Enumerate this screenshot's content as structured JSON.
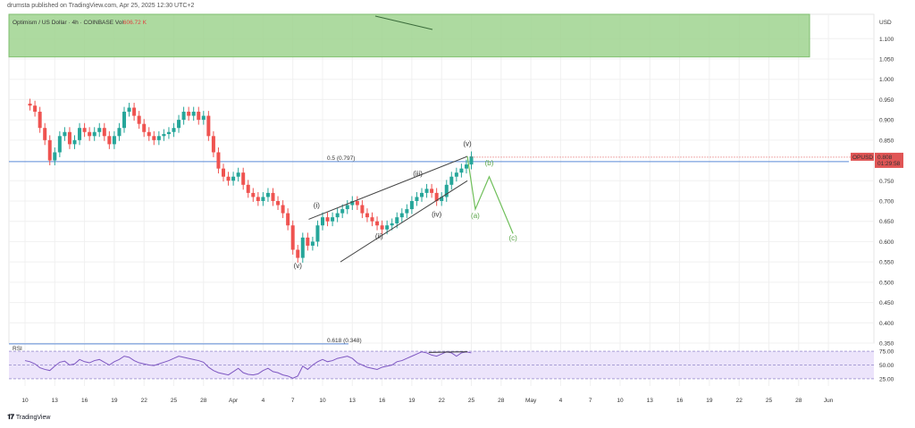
{
  "header": {
    "published": "drumsta published on TradingView.com, Apr 25, 2025 12:30 UTC+2"
  },
  "watermark": {
    "text": "TradingView"
  },
  "chart_data": {
    "type": "candlestick",
    "symbol_title": "Optimism / US Dollar · 4h · COINBASE",
    "volume_label": "Vol",
    "volume_value": "606.72 K",
    "currency": "USD",
    "ylim": [
      0.35,
      1.16
    ],
    "y_ticks": [
      "1.100",
      "1.050",
      "1.000",
      "0.950",
      "0.900",
      "0.850",
      "0.750",
      "0.700",
      "0.650",
      "0.600",
      "0.550",
      "0.500",
      "0.450",
      "0.400",
      "0.350"
    ],
    "x_ticks": [
      "10",
      "13",
      "16",
      "19",
      "22",
      "25",
      "28",
      "Apr",
      "4",
      "7",
      "10",
      "13",
      "16",
      "19",
      "22",
      "25",
      "28",
      "May",
      "4",
      "7",
      "10",
      "13",
      "16",
      "19",
      "22",
      "25",
      "28",
      "Jun"
    ],
    "price_path": [
      [
        0,
        0.94
      ],
      [
        1,
        0.935
      ],
      [
        2,
        0.92
      ],
      [
        3,
        0.88
      ],
      [
        4,
        0.85
      ],
      [
        5,
        0.8
      ],
      [
        6,
        0.82
      ],
      [
        7,
        0.86
      ],
      [
        8,
        0.87
      ],
      [
        9,
        0.84
      ],
      [
        10,
        0.85
      ],
      [
        11,
        0.88
      ],
      [
        12,
        0.87
      ],
      [
        13,
        0.86
      ],
      [
        14,
        0.87
      ],
      [
        15,
        0.88
      ],
      [
        16,
        0.86
      ],
      [
        17,
        0.84
      ],
      [
        18,
        0.86
      ],
      [
        19,
        0.88
      ],
      [
        20,
        0.92
      ],
      [
        21,
        0.93
      ],
      [
        22,
        0.91
      ],
      [
        23,
        0.89
      ],
      [
        24,
        0.87
      ],
      [
        25,
        0.86
      ],
      [
        26,
        0.85
      ],
      [
        27,
        0.86
      ],
      [
        28,
        0.865
      ],
      [
        29,
        0.87
      ],
      [
        30,
        0.88
      ],
      [
        31,
        0.9
      ],
      [
        32,
        0.92
      ],
      [
        33,
        0.91
      ],
      [
        34,
        0.92
      ],
      [
        35,
        0.9
      ],
      [
        36,
        0.91
      ],
      [
        37,
        0.86
      ],
      [
        38,
        0.82
      ],
      [
        39,
        0.78
      ],
      [
        40,
        0.76
      ],
      [
        41,
        0.75
      ],
      [
        42,
        0.76
      ],
      [
        43,
        0.77
      ],
      [
        44,
        0.74
      ],
      [
        45,
        0.72
      ],
      [
        46,
        0.71
      ],
      [
        47,
        0.7
      ],
      [
        48,
        0.71
      ],
      [
        49,
        0.72
      ],
      [
        50,
        0.7
      ],
      [
        51,
        0.69
      ],
      [
        52,
        0.67
      ],
      [
        53,
        0.64
      ],
      [
        54,
        0.58
      ],
      [
        55,
        0.56
      ],
      [
        56,
        0.61
      ],
      [
        57,
        0.59
      ],
      [
        58,
        0.6
      ],
      [
        59,
        0.64
      ],
      [
        60,
        0.66
      ],
      [
        61,
        0.65
      ],
      [
        62,
        0.66
      ],
      [
        63,
        0.67
      ],
      [
        64,
        0.68
      ],
      [
        65,
        0.69
      ],
      [
        66,
        0.7
      ],
      [
        67,
        0.69
      ],
      [
        68,
        0.67
      ],
      [
        69,
        0.66
      ],
      [
        70,
        0.65
      ],
      [
        71,
        0.64
      ],
      [
        72,
        0.63
      ],
      [
        73,
        0.64
      ],
      [
        74,
        0.645
      ],
      [
        75,
        0.66
      ],
      [
        76,
        0.67
      ],
      [
        77,
        0.68
      ],
      [
        78,
        0.7
      ],
      [
        79,
        0.71
      ],
      [
        80,
        0.72
      ],
      [
        81,
        0.73
      ],
      [
        82,
        0.72
      ],
      [
        83,
        0.7
      ],
      [
        84,
        0.71
      ],
      [
        85,
        0.74
      ],
      [
        86,
        0.76
      ],
      [
        87,
        0.77
      ],
      [
        88,
        0.78
      ],
      [
        89,
        0.79
      ],
      [
        90,
        0.81
      ]
    ],
    "price_path_days": [
      0,
      45
    ],
    "current_price": {
      "symbol": "OPUSD",
      "value": "0.808",
      "countdown": "01:29:58"
    },
    "horizontal_levels": [
      {
        "label": "0.5 (0.797)",
        "value": 0.797
      },
      {
        "label": "0.618 (0.348)",
        "value": 0.348
      }
    ],
    "resistance_zone": {
      "from": 1.055,
      "to": 1.18
    },
    "wave_labels": [
      {
        "text": "(v)",
        "x_day": 27.5,
        "y": 0.535
      },
      {
        "text": "(i)",
        "x_day": 29.4,
        "y": 0.683
      },
      {
        "text": "(ii)",
        "x_day": 35.7,
        "y": 0.607
      },
      {
        "text": "(iii)",
        "x_day": 39.6,
        "y": 0.762
      },
      {
        "text": "(iv)",
        "x_day": 41.5,
        "y": 0.662
      },
      {
        "text": "(v)",
        "x_day": 44.6,
        "y": 0.835
      }
    ],
    "projection_labels": [
      {
        "text": "(a)",
        "x_day": 45.4,
        "y": 0.658
      },
      {
        "text": "(b)",
        "x_day": 46.8,
        "y": 0.788
      },
      {
        "text": "(c)",
        "x_day": 49.2,
        "y": 0.603
      }
    ],
    "projection_path": [
      [
        44.6,
        0.81
      ],
      [
        45.4,
        0.68
      ],
      [
        46.8,
        0.76
      ],
      [
        49.2,
        0.62
      ]
    ],
    "wedge_lines": [
      [
        [
          28.6,
          0.655
        ],
        [
          44.6,
          0.81
        ]
      ],
      [
        [
          31.8,
          0.55
        ],
        [
          44.6,
          0.75
        ]
      ]
    ],
    "rsi": {
      "label": "RSI",
      "levels": [
        "75.00",
        "50.00",
        "25.00"
      ],
      "values": [
        58,
        56,
        52,
        45,
        42,
        40,
        48,
        55,
        57,
        50,
        52,
        60,
        56,
        54,
        58,
        60,
        55,
        50,
        56,
        60,
        66,
        64,
        58,
        54,
        52,
        50,
        49,
        52,
        55,
        58,
        62,
        66,
        64,
        62,
        60,
        58,
        55,
        46,
        40,
        36,
        34,
        32,
        38,
        44,
        36,
        33,
        32,
        34,
        40,
        44,
        38,
        36,
        32,
        30,
        26,
        30,
        48,
        42,
        50,
        56,
        60,
        56,
        58,
        62,
        64,
        66,
        62,
        54,
        50,
        46,
        44,
        42,
        46,
        48,
        50,
        56,
        58,
        62,
        66,
        70,
        74,
        72,
        68,
        66,
        70,
        74,
        72,
        66,
        72,
        74,
        72
      ]
    }
  }
}
